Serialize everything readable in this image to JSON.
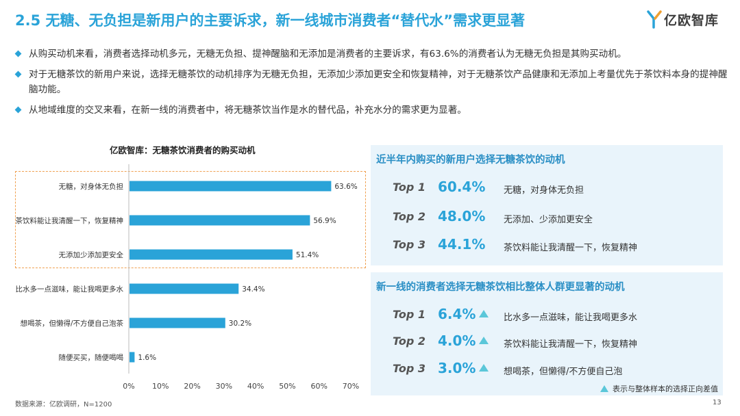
{
  "title": "2.5 无糖、无负担是新用户的主要诉求，新一线城市消费者“替代水”需求更显著",
  "logo": {
    "text": "亿欧智库"
  },
  "bullets": [
    "从购买动机来看，消费者选择动机多元，无糖无负担、提神醒脑和无添加是消费者的主要诉求，有63.6%的消费者认为无糖无负担是其购买动机。",
    "对于无糖茶饮的新用户来说，选择无糖茶饮的动机排序为无糖无负担，无添加少添加更安全和恢复精神，对于无糖茶饮产品健康和无添加上考量优先于茶饮料本身的提神醒脑功能。",
    "从地域维度的交叉来看，在新一线的消费者中，将无糖茶饮当作是水的替代品，补充水分的需求更为显著。"
  ],
  "chart_data": {
    "type": "bar",
    "orientation": "horizontal",
    "title": "亿欧智库：无糖茶饮消费者的购买动机",
    "categories": [
      "无糖，对身体无负担",
      "茶饮料能让我清醒一下，恢复精神",
      "无添加少添加更安全",
      "比水多一点滋味，能让我喝更多水",
      "想喝茶，但懒得/不方便自己泡茶",
      "随便买买，随便喝喝"
    ],
    "values": [
      63.6,
      56.9,
      51.4,
      34.4,
      30.2,
      1.6
    ],
    "value_labels": [
      "63.6%",
      "56.9%",
      "51.4%",
      "34.4%",
      "30.2%",
      "1.6%"
    ],
    "xticks": [
      "0%",
      "10%",
      "20%",
      "30%",
      "40%",
      "50%",
      "60%",
      "70%"
    ],
    "xlim": [
      0,
      70
    ],
    "highlighted_top": 3,
    "bar_color": "#2aa3d8"
  },
  "panel1": {
    "heading": "近半年内购买的新用户选择无糖茶饮的动机",
    "rows": [
      {
        "rank": "Top 1",
        "pct": "60.4%",
        "desc": "无糖，对身体无负担"
      },
      {
        "rank": "Top 2",
        "pct": "48.0%",
        "desc": "无添加、少添加更安全"
      },
      {
        "rank": "Top 3",
        "pct": "44.1%",
        "desc": "茶饮料能让我清醒一下，恢复精神"
      }
    ]
  },
  "panel2": {
    "heading": "新一线的消费者选择无糖茶饮相比整体人群更显著的动机",
    "rows": [
      {
        "rank": "Top 1",
        "pct": "6.4%",
        "desc": "比水多一点滋味，能让我喝更多水"
      },
      {
        "rank": "Top 2",
        "pct": "4.0%",
        "desc": "茶饮料能让我清醒一下，恢复精神"
      },
      {
        "rank": "Top 3",
        "pct": "3.0%",
        "desc": "想喝茶，但懒得/不方便自己泡"
      }
    ]
  },
  "note": "表示与整体样本的选择正向差值",
  "source": "数据来源：亿欧调研，N=1200",
  "page_number": "13"
}
